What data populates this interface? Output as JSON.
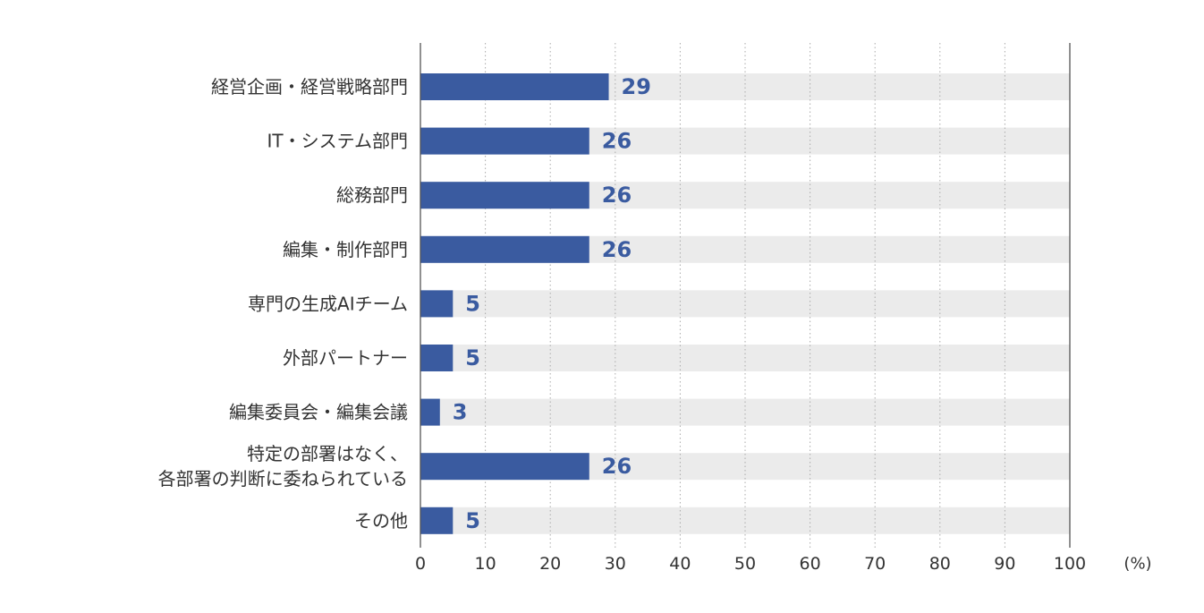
{
  "chart_data": {
    "type": "bar",
    "orientation": "horizontal",
    "title": "",
    "xlabel": "",
    "ylabel": "",
    "x_unit": "(%)",
    "xlim": [
      0,
      100
    ],
    "xticks": [
      0,
      10,
      20,
      30,
      40,
      50,
      60,
      70,
      80,
      90,
      100
    ],
    "grid": "vertical dotted",
    "legend": "none",
    "categories": [
      [
        "経営企画・経営戦略部門"
      ],
      [
        "IT・システム部門"
      ],
      [
        "総務部門"
      ],
      [
        "編集・制作部門"
      ],
      [
        "専門の生成AIチーム"
      ],
      [
        "外部パートナー"
      ],
      [
        "編集委員会・編集会議"
      ],
      [
        "特定の部署はなく、",
        "各部署の判断に委ねられている"
      ],
      [
        "その他"
      ]
    ],
    "values": [
      29,
      26,
      26,
      26,
      5,
      5,
      3,
      26,
      5
    ],
    "colors": {
      "bar": "#3a5ba0",
      "track": "#ebebeb",
      "value_text": "#3a5ba0",
      "axis": "#555555",
      "grid": "#aaaaaa",
      "text": "#333333"
    }
  }
}
